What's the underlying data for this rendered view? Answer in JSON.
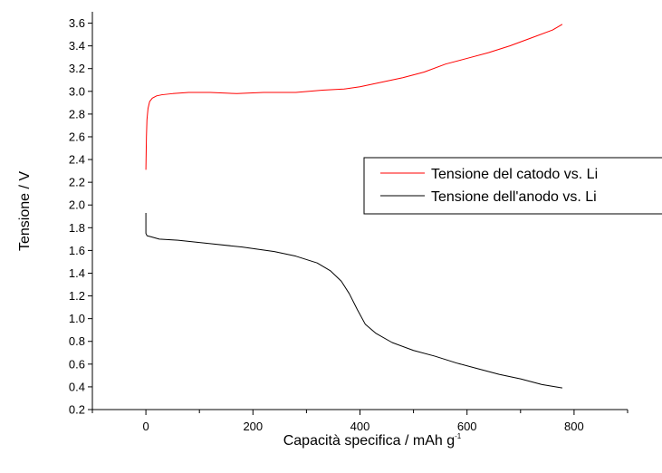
{
  "chart_data": {
    "type": "line",
    "xlabel": "Capacità specifica / mAh g",
    "xlabel_superscript": "-1",
    "ylabel": "Tensione / V",
    "xlim": [
      -100,
      900
    ],
    "ylim": [
      0.2,
      3.7
    ],
    "xticks": [
      0,
      200,
      400,
      600,
      800
    ],
    "yticks": [
      0.2,
      0.4,
      0.6,
      0.8,
      1.0,
      1.2,
      1.4,
      1.6,
      1.8,
      2.0,
      2.2,
      2.4,
      2.6,
      2.8,
      3.0,
      3.2,
      3.4,
      3.6
    ],
    "grid": false,
    "legend_position": "right",
    "series": [
      {
        "name": "Tensione del catodo vs. Li",
        "color": "#ff0000",
        "x": [
          0,
          1,
          2,
          4,
          7,
          12,
          20,
          30,
          50,
          80,
          120,
          170,
          220,
          280,
          330,
          370,
          400,
          440,
          480,
          520,
          560,
          600,
          640,
          680,
          720,
          760,
          778
        ],
        "y": [
          2.31,
          2.6,
          2.75,
          2.85,
          2.91,
          2.94,
          2.96,
          2.97,
          2.98,
          2.99,
          2.99,
          2.98,
          2.99,
          2.99,
          3.01,
          3.02,
          3.04,
          3.08,
          3.12,
          3.17,
          3.24,
          3.29,
          3.34,
          3.4,
          3.47,
          3.54,
          3.59
        ]
      },
      {
        "name": "Tensione dell'anodo vs. Li",
        "color": "#000000",
        "x": [
          0,
          0,
          2,
          10,
          25,
          60,
          120,
          180,
          240,
          280,
          320,
          345,
          365,
          380,
          395,
          410,
          430,
          460,
          500,
          540,
          580,
          620,
          660,
          700,
          740,
          778
        ],
        "y": [
          1.93,
          1.75,
          1.73,
          1.72,
          1.7,
          1.69,
          1.66,
          1.63,
          1.59,
          1.55,
          1.49,
          1.42,
          1.33,
          1.22,
          1.08,
          0.95,
          0.87,
          0.79,
          0.72,
          0.67,
          0.61,
          0.56,
          0.51,
          0.47,
          0.42,
          0.39
        ]
      }
    ]
  }
}
